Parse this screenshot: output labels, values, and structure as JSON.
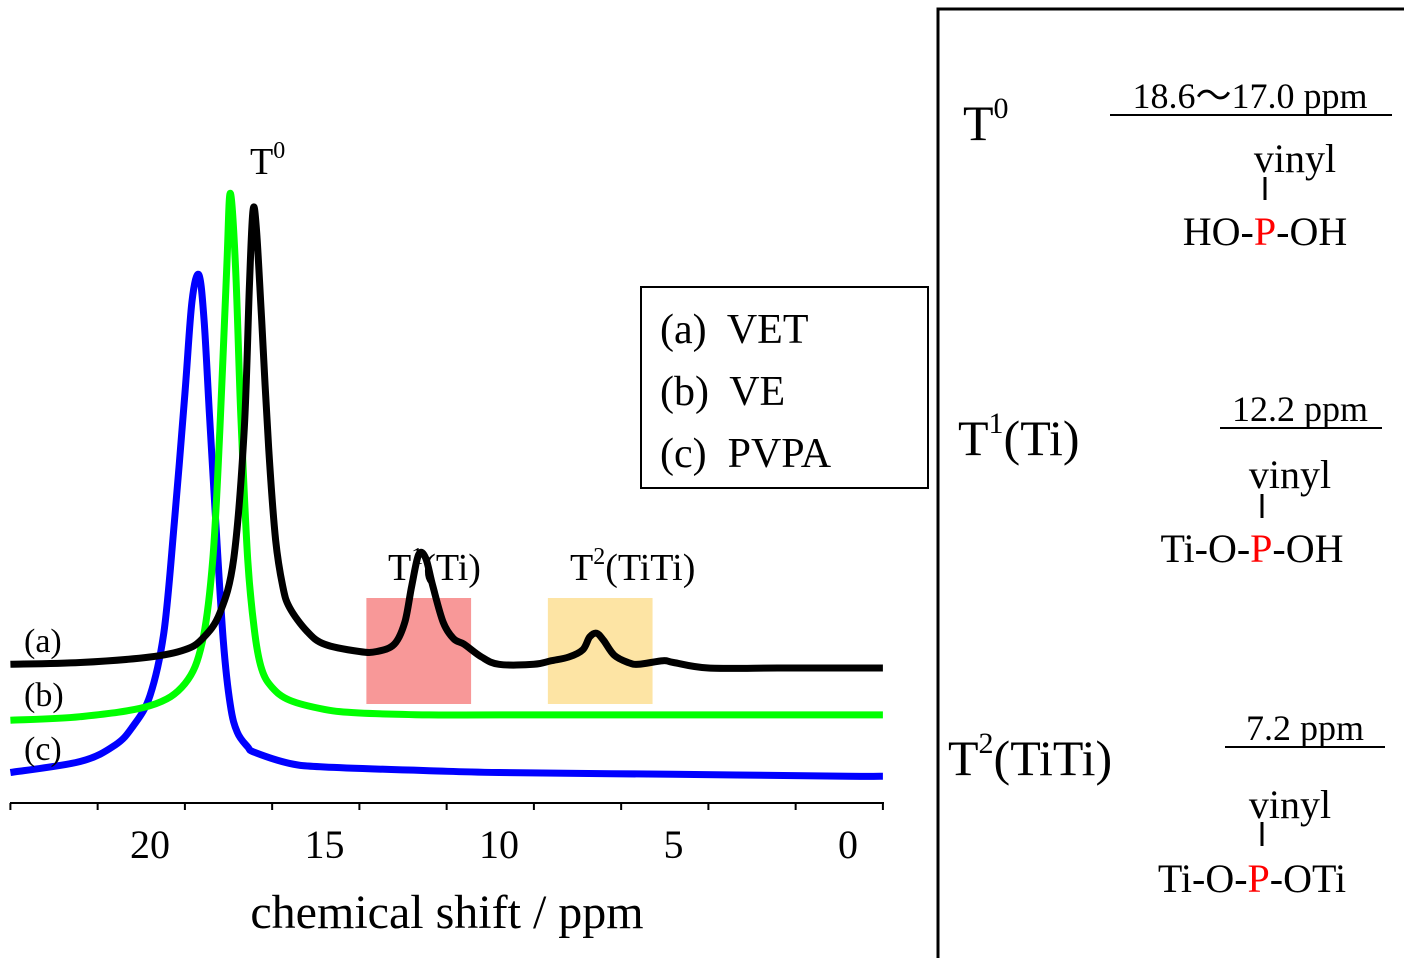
{
  "chart_data": {
    "type": "line",
    "xlabel": "chemical shift / ppm",
    "ylabel": "",
    "xlim": [
      24.0,
      -1.0
    ],
    "x_reversed": true,
    "xticks": [
      20,
      15,
      10,
      5,
      0
    ],
    "xtick_labels": [
      "20",
      "15",
      "10",
      "5",
      "0"
    ],
    "grid": false,
    "legend_position": "top-right",
    "legend": [
      {
        "key": "a",
        "label": "(a)  VET"
      },
      {
        "key": "b",
        "label": "(b)  VE"
      },
      {
        "key": "c",
        "label": "(c)  PVPA"
      }
    ],
    "series_tags": [
      "(a)",
      "(b)",
      "(c)"
    ],
    "series": [
      {
        "key": "a",
        "color": "#000000",
        "points": [
          [
            24,
            0.02
          ],
          [
            22,
            0.03
          ],
          [
            20,
            0.06
          ],
          [
            19,
            0.1
          ],
          [
            18.5,
            0.16
          ],
          [
            18,
            0.3
          ],
          [
            17.6,
            0.6
          ],
          [
            17.3,
            1.3
          ],
          [
            17.15,
            2.1
          ],
          [
            17.05,
            2.5
          ],
          [
            16.95,
            2.4
          ],
          [
            16.8,
            1.9
          ],
          [
            16.6,
            1.2
          ],
          [
            16.4,
            0.7
          ],
          [
            16.2,
            0.45
          ],
          [
            16,
            0.33
          ],
          [
            15.5,
            0.2
          ],
          [
            15,
            0.13
          ],
          [
            14,
            0.09
          ],
          [
            13.5,
            0.09
          ],
          [
            13,
            0.13
          ],
          [
            12.7,
            0.25
          ],
          [
            12.5,
            0.45
          ],
          [
            12.3,
            0.62
          ],
          [
            12.1,
            0.6
          ],
          [
            11.9,
            0.45
          ],
          [
            11.6,
            0.25
          ],
          [
            11.3,
            0.16
          ],
          [
            11,
            0.13
          ],
          [
            10.5,
            0.06
          ],
          [
            10,
            0.02
          ],
          [
            9,
            0.02
          ],
          [
            8.5,
            0.04
          ],
          [
            8,
            0.06
          ],
          [
            7.6,
            0.1
          ],
          [
            7.4,
            0.17
          ],
          [
            7.2,
            0.19
          ],
          [
            7,
            0.15
          ],
          [
            6.7,
            0.07
          ],
          [
            6.3,
            0.03
          ],
          [
            6,
            0.02
          ],
          [
            5.3,
            0.04
          ],
          [
            5,
            0.03
          ],
          [
            4,
            0.0
          ],
          [
            2,
            0.0
          ],
          [
            0,
            0.0
          ],
          [
            -1,
            0.0
          ]
        ]
      },
      {
        "key": "b",
        "color": "#00ff00",
        "points": [
          [
            24,
            0.02
          ],
          [
            22,
            0.04
          ],
          [
            20,
            0.1
          ],
          [
            19,
            0.22
          ],
          [
            18.5,
            0.45
          ],
          [
            18.2,
            0.9
          ],
          [
            18,
            1.6
          ],
          [
            17.8,
            2.5
          ],
          [
            17.7,
            2.9
          ],
          [
            17.55,
            2.5
          ],
          [
            17.4,
            1.7
          ],
          [
            17.2,
            0.9
          ],
          [
            17,
            0.5
          ],
          [
            16.8,
            0.3
          ],
          [
            16.5,
            0.2
          ],
          [
            16,
            0.13
          ],
          [
            15,
            0.08
          ],
          [
            14,
            0.06
          ],
          [
            12,
            0.05
          ],
          [
            10,
            0.05
          ],
          [
            5,
            0.05
          ],
          [
            0,
            0.05
          ],
          [
            -1,
            0.05
          ]
        ]
      },
      {
        "key": "c",
        "color": "#0000ff",
        "points": [
          [
            24,
            0.03
          ],
          [
            22,
            0.09
          ],
          [
            21,
            0.18
          ],
          [
            20.5,
            0.28
          ],
          [
            20,
            0.45
          ],
          [
            19.6,
            0.8
          ],
          [
            19.3,
            1.4
          ],
          [
            19,
            2.1
          ],
          [
            18.8,
            2.6
          ],
          [
            18.6,
            2.75
          ],
          [
            18.45,
            2.5
          ],
          [
            18.3,
            2.0
          ],
          [
            18.1,
            1.35
          ],
          [
            17.9,
            0.75
          ],
          [
            17.7,
            0.4
          ],
          [
            17.5,
            0.25
          ],
          [
            17.2,
            0.17
          ],
          [
            17,
            0.14
          ],
          [
            16,
            0.08
          ],
          [
            15,
            0.06
          ],
          [
            12,
            0.04
          ],
          [
            10,
            0.03
          ],
          [
            5,
            0.02
          ],
          [
            0,
            0.01
          ],
          [
            -1,
            0.01
          ]
        ]
      }
    ],
    "highlight_bands": [
      {
        "label_main": "T",
        "label_sup": "1",
        "label_rest": "(Ti)",
        "from": 13.8,
        "to": 10.8,
        "color": "#f89898"
      },
      {
        "label_main": "T",
        "label_sup": "2",
        "label_rest": "(TiTi)",
        "from": 8.6,
        "to": 5.6,
        "color": "#fde4a4"
      }
    ],
    "peak_label": {
      "main": "T",
      "sup": "0"
    }
  },
  "assignments": [
    {
      "main": "T",
      "sup": "0",
      "rest": "",
      "shift": "18.6〜17.0 ppm",
      "top_group": "vinyl",
      "struct_left": "HO-",
      "struct_atom": "P",
      "struct_right": "-OH"
    },
    {
      "main": "T",
      "sup": "1",
      "rest": "(Ti)",
      "shift": "12.2 ppm",
      "top_group": "vinyl",
      "struct_left": "Ti-O-",
      "struct_atom": "P",
      "struct_right": "-OH"
    },
    {
      "main": "T",
      "sup": "2",
      "rest": "(TiTi)",
      "shift": "7.2 ppm",
      "top_group": "vinyl",
      "struct_left": "Ti-O-",
      "struct_atom": "P",
      "struct_right": "-OTi"
    }
  ]
}
